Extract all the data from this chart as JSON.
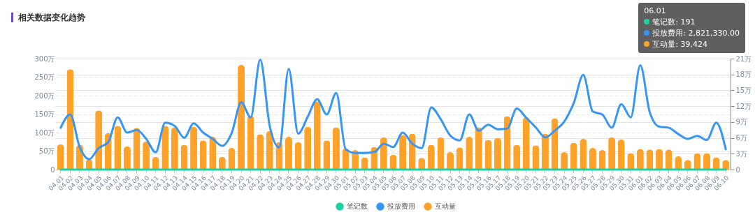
{
  "chart_data": {
    "type": "line",
    "title": "相关数据变化趋势",
    "categories": [
      "04.01",
      "04.02",
      "04.03",
      "04.04",
      "04.05",
      "04.06",
      "04.07",
      "04.08",
      "04.09",
      "04.10",
      "04.11",
      "04.12",
      "04.13",
      "04.14",
      "04.15",
      "04.16",
      "04.17",
      "04.18",
      "04.19",
      "04.20",
      "04.21",
      "04.22",
      "04.23",
      "04.24",
      "04.25",
      "04.26",
      "04.27",
      "04.28",
      "04.29",
      "04.30",
      "05.01",
      "05.02",
      "05.03",
      "05.04",
      "05.05",
      "05.06",
      "05.07",
      "05.08",
      "05.09",
      "05.10",
      "05.11",
      "05.12",
      "05.13",
      "05.14",
      "05.15",
      "05.16",
      "05.17",
      "05.18",
      "05.19",
      "05.20",
      "05.21",
      "05.22",
      "05.23",
      "05.24",
      "05.25",
      "05.26",
      "05.27",
      "05.28",
      "05.29",
      "05.30",
      "05.31",
      "06.01",
      "06.02",
      "06.03",
      "06.04",
      "06.05",
      "06.06",
      "06.07",
      "06.08",
      "06.09",
      "06.10"
    ],
    "series": [
      {
        "name": "笔记数",
        "color": "#1fd1a0",
        "values": [
          0,
          0,
          0,
          0,
          0,
          0,
          0,
          0,
          0,
          0,
          0,
          0,
          0,
          0,
          0,
          0,
          0,
          0,
          0,
          0,
          0,
          0,
          0,
          0,
          0,
          0,
          0,
          0,
          0,
          0,
          0,
          0,
          0,
          0,
          0,
          0,
          0,
          0,
          0,
          0,
          0,
          0,
          0,
          0,
          0,
          0,
          0,
          0,
          0,
          0,
          0,
          0,
          0,
          0,
          0,
          0,
          0,
          0,
          0,
          0,
          0,
          0,
          0,
          0,
          0,
          0,
          0,
          0,
          0,
          0,
          0
        ]
      },
      {
        "name": "投放费用",
        "color": "#3596f7",
        "values": [
          113,
          149,
          61,
          28,
          58,
          74,
          141,
          100,
          107,
          83,
          47,
          127,
          118,
          86,
          125,
          100,
          83,
          64,
          99,
          182,
          141,
          297,
          118,
          60,
          272,
          97,
          143,
          190,
          149,
          207,
          55,
          45,
          45,
          47,
          70,
          61,
          100,
          70,
          58,
          168,
          136,
          92,
          79,
          149,
          105,
          121,
          109,
          111,
          165,
          140,
          114,
          87,
          105,
          130,
          180,
          256,
          157,
          149,
          113,
          177,
          141,
          282,
          155,
          116,
          113,
          96,
          83,
          91,
          80,
          127,
          55
        ]
      },
      {
        "name": "互动量",
        "type": "bar",
        "axis": "y2",
        "color": "#ffa22a",
        "values": [
          4.8,
          19.0,
          4.7,
          1.9,
          11.2,
          6.9,
          8.3,
          4.4,
          7.9,
          5.3,
          2.4,
          8.3,
          8.0,
          4.7,
          8.1,
          5.5,
          6.2,
          2.4,
          4.1,
          19.8,
          10.2,
          6.7,
          7.3,
          5.2,
          6.2,
          5.2,
          8.1,
          12.9,
          5.5,
          8.0,
          4.0,
          3.7,
          2.3,
          4.3,
          6.1,
          2.8,
          6.5,
          6.8,
          2.2,
          4.7,
          6.1,
          3.3,
          4.2,
          6.2,
          8.0,
          5.6,
          6.0,
          10.1,
          4.7,
          9.9,
          4.6,
          6.8,
          9.7,
          3.3,
          5.1,
          5.8,
          4.1,
          3.7,
          6.1,
          5.7,
          3.1,
          3.9,
          3.8,
          3.9,
          3.8,
          2.5,
          1.8,
          3.1,
          3.1,
          2.3,
          1.8
        ]
      }
    ],
    "ylim": [
      0,
      300
    ],
    "yticks": [
      0,
      {
        "value": 50,
        "label": "50万"
      },
      {
        "value": 100,
        "label": "100万"
      },
      {
        "value": 150,
        "label": "150万"
      },
      {
        "value": 200,
        "label": "200万"
      },
      {
        "value": 250,
        "label": "250万"
      },
      {
        "value": 300,
        "label": "300万"
      }
    ],
    "y2lim": [
      0,
      21
    ],
    "y2ticks": [
      0,
      {
        "value": 3,
        "label": "3万"
      },
      {
        "value": 6,
        "label": "6万"
      },
      {
        "value": 9,
        "label": "9万"
      },
      {
        "value": 12,
        "label": "12万"
      },
      {
        "value": 15,
        "label": "15万"
      },
      {
        "value": 18,
        "label": "18万"
      },
      {
        "value": 21,
        "label": "21万"
      }
    ],
    "grid": "y",
    "legend": "bottom",
    "marker": "none",
    "line_style": "solid",
    "annotations": [
      "06.01",
      "笔记数: 191",
      "投放费用: 2,821,330.00",
      "互动量: 39,424"
    ]
  }
}
